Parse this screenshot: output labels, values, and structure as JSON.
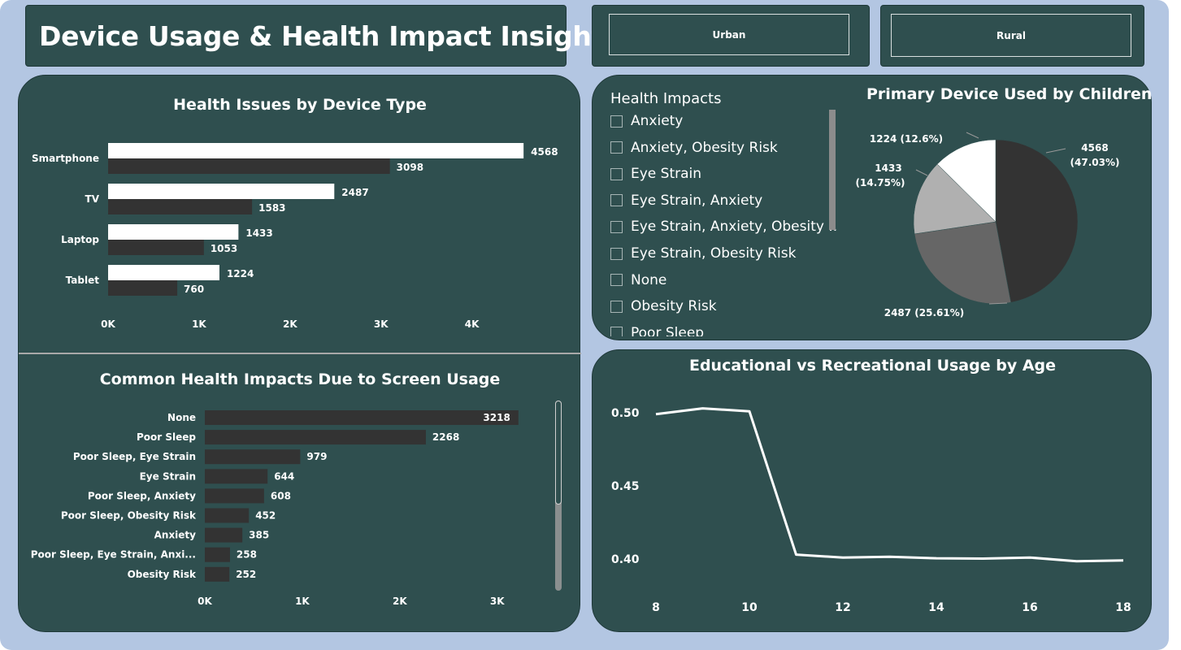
{
  "title": "Device Usage & Health Impact Insights",
  "slicers": [
    "Urban",
    "Rural"
  ],
  "colors": {
    "background": "#b3c6e2",
    "panel": "#2f4f4f",
    "bar_primary": "#ffffff",
    "bar_secondary": "#333333",
    "pie": [
      "#333333",
      "#666666",
      "#b0b0b0",
      "#ffffff"
    ]
  },
  "health_impacts_filter": {
    "title": "Health Impacts",
    "items": [
      "Anxiety",
      "Anxiety, Obesity Risk",
      "Eye Strain",
      "Eye Strain, Anxiety",
      "Eye Strain, Anxiety, Obesity ...",
      "Eye Strain, Obesity Risk",
      "None",
      "Obesity Risk",
      "Poor Sleep"
    ]
  },
  "chart_data": [
    {
      "type": "bar",
      "orientation": "horizontal",
      "title": "Health Issues by Device Type",
      "categories": [
        "Smartphone",
        "TV",
        "Laptop",
        "Tablet"
      ],
      "series": [
        {
          "values": [
            4568,
            2487,
            1433,
            1224
          ],
          "color": "#ffffff"
        },
        {
          "values": [
            3098,
            1583,
            1053,
            760
          ],
          "color": "#333333"
        }
      ],
      "xticks": [
        "0K",
        "1K",
        "2K",
        "3K",
        "4K"
      ],
      "xlim": [
        0,
        4800
      ]
    },
    {
      "type": "bar",
      "orientation": "horizontal",
      "title": "Common Health Impacts Due to Screen Usage",
      "categories": [
        "None",
        "Poor Sleep",
        "Poor Sleep, Eye Strain",
        "Eye Strain",
        "Poor Sleep, Anxiety",
        "Poor Sleep, Obesity Risk",
        "Anxiety",
        "Poor Sleep, Eye Strain, Anxi...",
        "Obesity Risk"
      ],
      "values": [
        3218,
        2268,
        979,
        644,
        608,
        452,
        385,
        258,
        252
      ],
      "xticks": [
        "0K",
        "1K",
        "2K",
        "3K"
      ],
      "xlim": [
        0,
        3600
      ]
    },
    {
      "type": "pie",
      "title": "Primary Device Used by Children",
      "values": [
        4568,
        2487,
        1433,
        1224
      ],
      "labels": [
        "4568 (47.03%)",
        "2487 (25.61%)",
        "1433 (14.75%)",
        "1224 (12.6%)"
      ]
    },
    {
      "type": "line",
      "title": "Educational vs Recreational Usage by Age",
      "x": [
        8,
        9,
        10,
        11,
        12,
        13,
        14,
        15,
        16,
        17,
        18
      ],
      "y": [
        0.499,
        0.503,
        0.501,
        0.403,
        0.401,
        0.4015,
        0.4005,
        0.4003,
        0.401,
        0.3985,
        0.399
      ],
      "xticks": [
        "8",
        "10",
        "12",
        "14",
        "16",
        "18"
      ],
      "yticks": [
        "0.50",
        "0.45",
        "0.40"
      ],
      "xlim": [
        8,
        18
      ],
      "ylim": [
        0.4,
        0.5
      ]
    }
  ]
}
